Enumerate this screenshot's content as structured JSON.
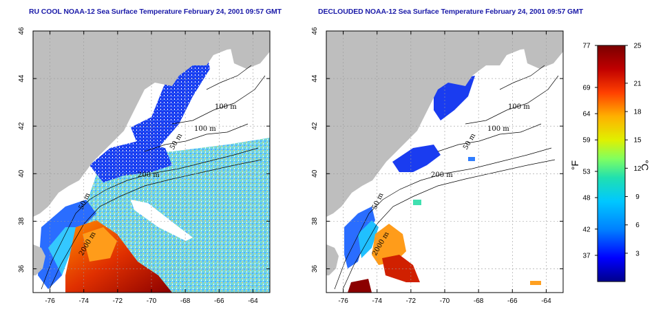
{
  "titles": {
    "left": "RU COOL NOAA-12 Sea Surface Temperature February 24, 2001 09:57 GMT",
    "right": "DECLOUDED NOAA-12 Sea Surface Temperature February 24, 2001 09:57 GMT"
  },
  "map": {
    "lon_range": [
      -77,
      -63
    ],
    "lat_range": [
      35,
      46
    ],
    "lon_ticks": [
      -76,
      -74,
      -72,
      -70,
      -68,
      -66,
      -64
    ],
    "lat_ticks": [
      36,
      38,
      40,
      42,
      44,
      46
    ],
    "lon_tick_labels": [
      "-76",
      "-74",
      "-72",
      "-70",
      "-68",
      "-66",
      "-64"
    ],
    "lat_tick_labels": [
      "36",
      "38",
      "40",
      "42",
      "44",
      "46"
    ],
    "contour_labels": [
      "100 m",
      "100 m",
      "50 m",
      "200 m",
      "50 m",
      "2000 m"
    ],
    "land_color": "#bebebe",
    "grid_style": "dotted"
  },
  "colorbar": {
    "celsius_min": 0,
    "celsius_max": 25,
    "celsius_ticks": [
      "25",
      "21",
      "18",
      "15",
      "12",
      "9",
      "6",
      "3"
    ],
    "fahrenheit_ticks": [
      "77",
      "69",
      "64",
      "59",
      "53",
      "48",
      "42",
      "37"
    ],
    "celsius_unit": "°C",
    "fahrenheit_unit": "°F",
    "colors": [
      "#00008b",
      "#0000ff",
      "#0080ff",
      "#00c8ff",
      "#20e0b0",
      "#80ff60",
      "#e0f000",
      "#ffb000",
      "#ff4000",
      "#c00000",
      "#7a0000"
    ]
  }
}
